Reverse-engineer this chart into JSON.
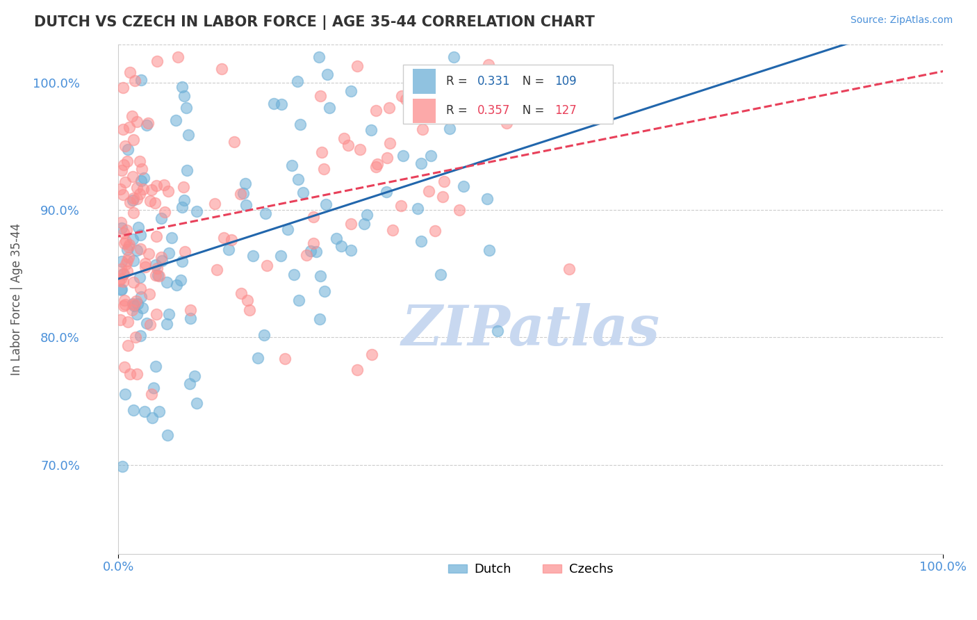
{
  "title": "DUTCH VS CZECH IN LABOR FORCE | AGE 35-44 CORRELATION CHART",
  "source_text": "Source: ZipAtlas.com",
  "ylabel": "In Labor Force | Age 35-44",
  "xlim": [
    0.0,
    1.0
  ],
  "ylim": [
    0.63,
    1.03
  ],
  "x_ticks": [
    0.0,
    1.0
  ],
  "x_tick_labels": [
    "0.0%",
    "100.0%"
  ],
  "y_ticks": [
    0.7,
    0.8,
    0.9,
    1.0
  ],
  "y_tick_labels": [
    "70.0%",
    "80.0%",
    "90.0%",
    "100.0%"
  ],
  "dutch_R": 0.331,
  "dutch_N": 109,
  "czech_R": 0.357,
  "czech_N": 127,
  "dutch_color": "#6baed6",
  "czech_color": "#fc8d8d",
  "dutch_line_color": "#2166ac",
  "czech_line_color": "#e8405a",
  "watermark": "ZIPatlas",
  "watermark_color": "#c8d8f0",
  "title_color": "#333333",
  "axis_label_color": "#555555",
  "tick_label_color": "#4a90d9",
  "grid_color": "#cccccc",
  "background_color": "#ffffff"
}
